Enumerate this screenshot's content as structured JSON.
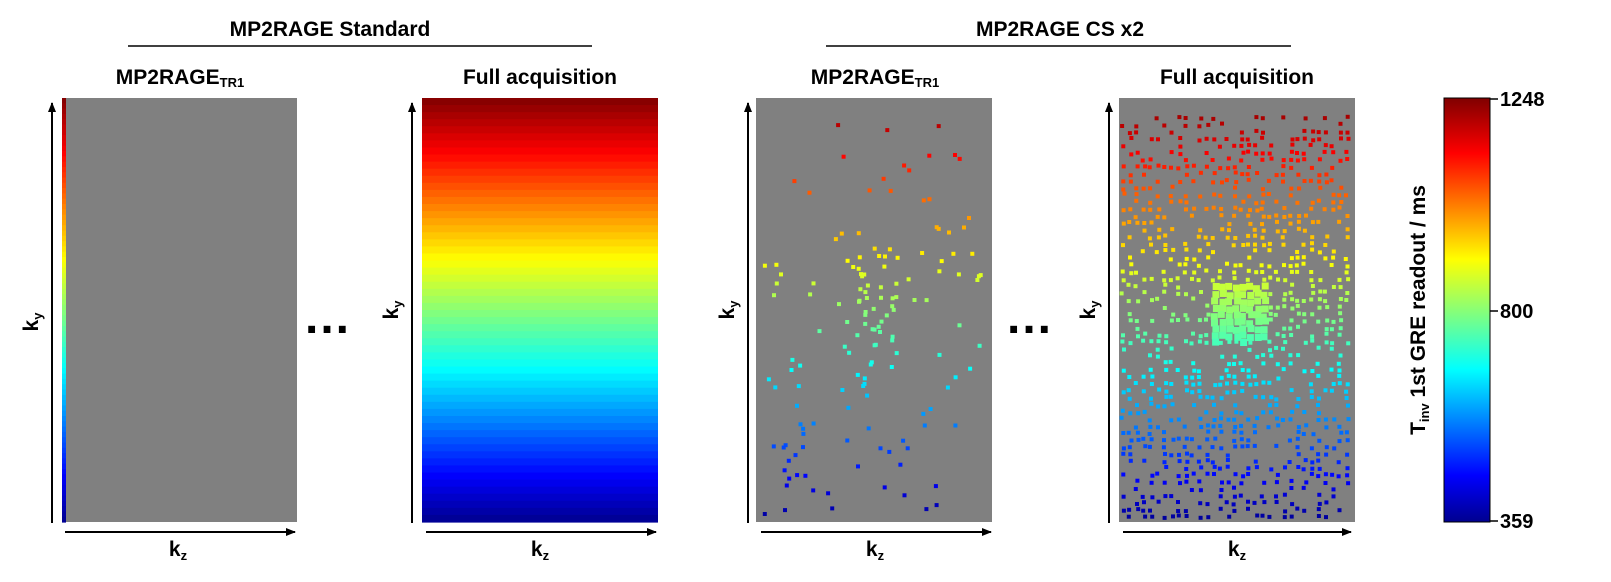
{
  "groups": [
    {
      "title": "MP2RAGE Standard"
    },
    {
      "title": "MP2RAGE CS x2"
    }
  ],
  "panels": [
    {
      "title_main": "MP2RAGE",
      "title_sub": "TR1",
      "x_axis_main": "k",
      "x_axis_sub": "z",
      "y_axis_main": "k",
      "y_axis_sub": "y",
      "pattern": "first-column"
    },
    {
      "title_main": "Full acquisition",
      "title_sub": "",
      "x_axis_main": "k",
      "x_axis_sub": "z",
      "y_axis_main": "k",
      "y_axis_sub": "y",
      "pattern": "full"
    },
    {
      "title_main": "MP2RAGE",
      "title_sub": "TR1",
      "x_axis_main": "k",
      "x_axis_sub": "z",
      "y_axis_main": "k",
      "y_axis_sub": "y",
      "pattern": "sparse"
    },
    {
      "title_main": "Full acquisition",
      "title_sub": "",
      "x_axis_main": "k",
      "x_axis_sub": "z",
      "y_axis_main": "k",
      "y_axis_sub": "y",
      "pattern": "dense-random"
    }
  ],
  "ellipsis": "...",
  "colorbar": {
    "label_main": "T",
    "label_sub": "inv",
    "label_rest": " 1st GRE readout / ms",
    "min": 359,
    "max": 1248,
    "ticks": [
      "1248",
      "800",
      "359"
    ],
    "colormap": "jet"
  },
  "colors": {
    "background": "#ffffff",
    "unsampled": "#808080",
    "ink": "#000000"
  }
}
